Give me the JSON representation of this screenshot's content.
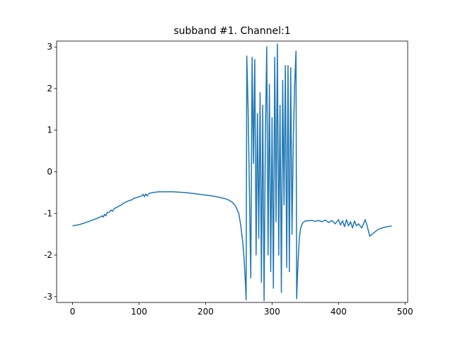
{
  "chart_data": {
    "type": "line",
    "title": "subband #1. Channel:1",
    "x": [
      0,
      10,
      20,
      30,
      40,
      44,
      46,
      48,
      50,
      52,
      55,
      58,
      60,
      63,
      66,
      70,
      73,
      76,
      80,
      84,
      88,
      92,
      96,
      100,
      104,
      106,
      108,
      110,
      112,
      115,
      120,
      130,
      140,
      150,
      160,
      170,
      180,
      190,
      200,
      210,
      220,
      230,
      235,
      240,
      245,
      250,
      253,
      256,
      258,
      260,
      261,
      262,
      264,
      266,
      268,
      270,
      272,
      274,
      276,
      278,
      280,
      282,
      284,
      286,
      288,
      290,
      292,
      294,
      296,
      298,
      300,
      302,
      304,
      306,
      308,
      310,
      312,
      314,
      316,
      318,
      320,
      322,
      324,
      326,
      328,
      330,
      332,
      334,
      336,
      337,
      339,
      341,
      343,
      346,
      350,
      360,
      365,
      370,
      375,
      380,
      385,
      390,
      395,
      400,
      403,
      406,
      409,
      412,
      415,
      418,
      421,
      424,
      427,
      430,
      435,
      440,
      443,
      447,
      452,
      460,
      470,
      480
    ],
    "values": [
      -1.3,
      -1.27,
      -1.22,
      -1.16,
      -1.1,
      -1.06,
      -1.09,
      -1.02,
      -1.06,
      -0.98,
      -0.97,
      -0.92,
      -0.95,
      -0.88,
      -0.86,
      -0.82,
      -0.8,
      -0.76,
      -0.73,
      -0.7,
      -0.68,
      -0.64,
      -0.62,
      -0.6,
      -0.58,
      -0.54,
      -0.6,
      -0.53,
      -0.58,
      -0.52,
      -0.5,
      -0.48,
      -0.48,
      -0.48,
      -0.49,
      -0.5,
      -0.52,
      -0.54,
      -0.56,
      -0.58,
      -0.61,
      -0.65,
      -0.68,
      -0.73,
      -0.82,
      -1.0,
      -1.3,
      -1.7,
      -2.1,
      -2.7,
      -3.08,
      2.78,
      1.5,
      -0.5,
      -2.55,
      2.75,
      0.2,
      2.7,
      -2.0,
      1.4,
      -1.6,
      1.9,
      -2.65,
      1.6,
      -3.1,
      0.9,
      3.0,
      -2.0,
      2.1,
      -2.4,
      1.3,
      -2.8,
      2.75,
      -1.2,
      3.07,
      -2.0,
      1.6,
      -2.9,
      2.2,
      -0.8,
      2.55,
      -2.3,
      2.55,
      -2.4,
      2.5,
      -1.5,
      0.8,
      2.1,
      2.9,
      -3.05,
      -2.2,
      -1.6,
      -1.35,
      -1.23,
      -1.18,
      -1.17,
      -1.19,
      -1.17,
      -1.2,
      -1.16,
      -1.22,
      -1.17,
      -1.25,
      -1.15,
      -1.28,
      -1.18,
      -1.32,
      -1.15,
      -1.3,
      -1.2,
      -1.35,
      -1.18,
      -1.3,
      -1.25,
      -1.35,
      -1.15,
      -1.3,
      -1.55,
      -1.48,
      -1.38,
      -1.33,
      -1.3
    ],
    "color": "#1f77b4",
    "xlim": [
      -24,
      504
    ],
    "ylim": [
      -3.14,
      3.14
    ],
    "xticks": [
      0,
      100,
      200,
      300,
      400,
      500
    ],
    "yticks": [
      -3,
      -2,
      -1,
      0,
      1,
      2,
      3
    ]
  }
}
